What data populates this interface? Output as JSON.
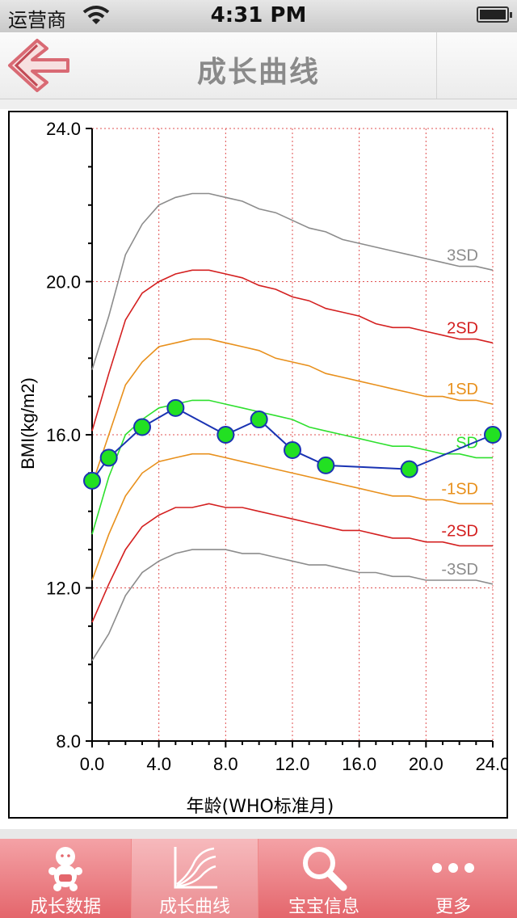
{
  "status_bar": {
    "carrier": "运营商",
    "time": "4:31 PM"
  },
  "nav": {
    "title": "成长曲线"
  },
  "tabs": [
    {
      "label": "成长数据",
      "icon": "baby-icon"
    },
    {
      "label": "成长曲线",
      "icon": "chart-icon"
    },
    {
      "label": "宝宝信息",
      "icon": "magnifier-icon"
    },
    {
      "label": "更多",
      "icon": "more-dots-icon"
    }
  ],
  "chart_data": {
    "type": "line",
    "xlabel": "年龄(WHO标准月)",
    "ylabel": "BMI(kg/m2)",
    "xlim": [
      0,
      24
    ],
    "ylim": [
      8,
      24
    ],
    "x_ticks": [
      "0.0",
      "4.0",
      "8.0",
      "12.0",
      "16.0",
      "20.0",
      "24.0"
    ],
    "y_ticks": [
      "8.0",
      "12.0",
      "16.0",
      "20.0",
      "24.0"
    ],
    "grid": true,
    "grid_color": "#e05050",
    "series": [
      {
        "name": "3SD",
        "color": "#8c8c8c",
        "x": [
          0,
          1,
          2,
          3,
          4,
          5,
          6,
          7,
          8,
          9,
          10,
          11,
          12,
          13,
          14,
          15,
          16,
          17,
          18,
          19,
          20,
          21,
          22,
          23,
          24
        ],
        "values": [
          17.7,
          19.1,
          20.7,
          21.5,
          22.0,
          22.2,
          22.3,
          22.3,
          22.2,
          22.1,
          21.9,
          21.8,
          21.6,
          21.4,
          21.3,
          21.1,
          21.0,
          20.9,
          20.8,
          20.7,
          20.6,
          20.5,
          20.4,
          20.4,
          20.3
        ]
      },
      {
        "name": "2SD",
        "color": "#d42020",
        "x": [
          0,
          1,
          2,
          3,
          4,
          5,
          6,
          7,
          8,
          9,
          10,
          11,
          12,
          13,
          14,
          15,
          16,
          17,
          18,
          19,
          20,
          21,
          22,
          23,
          24
        ],
        "values": [
          16.1,
          17.6,
          19.0,
          19.7,
          20.0,
          20.2,
          20.3,
          20.3,
          20.2,
          20.1,
          19.9,
          19.8,
          19.6,
          19.5,
          19.3,
          19.2,
          19.1,
          18.9,
          18.8,
          18.8,
          18.7,
          18.6,
          18.5,
          18.5,
          18.4
        ]
      },
      {
        "name": "1SD",
        "color": "#e8901c",
        "x": [
          0,
          1,
          2,
          3,
          4,
          5,
          6,
          7,
          8,
          9,
          10,
          11,
          12,
          13,
          14,
          15,
          16,
          17,
          18,
          19,
          20,
          21,
          22,
          23,
          24
        ],
        "values": [
          14.7,
          16.0,
          17.3,
          17.9,
          18.3,
          18.4,
          18.5,
          18.5,
          18.4,
          18.3,
          18.2,
          18.0,
          17.9,
          17.8,
          17.6,
          17.5,
          17.4,
          17.3,
          17.2,
          17.1,
          17.0,
          17.0,
          16.9,
          16.9,
          16.8
        ]
      },
      {
        "name": "SD",
        "color": "#2ee02e",
        "x": [
          0,
          1,
          2,
          3,
          4,
          5,
          6,
          7,
          8,
          9,
          10,
          11,
          12,
          13,
          14,
          15,
          16,
          17,
          18,
          19,
          20,
          21,
          22,
          23,
          24
        ],
        "values": [
          13.4,
          14.9,
          16.0,
          16.4,
          16.7,
          16.8,
          16.9,
          16.9,
          16.8,
          16.7,
          16.6,
          16.5,
          16.4,
          16.2,
          16.1,
          16.0,
          15.9,
          15.8,
          15.7,
          15.7,
          15.6,
          15.5,
          15.5,
          15.4,
          15.4
        ]
      },
      {
        "name": "-1SD",
        "color": "#e8901c",
        "x": [
          0,
          1,
          2,
          3,
          4,
          5,
          6,
          7,
          8,
          9,
          10,
          11,
          12,
          13,
          14,
          15,
          16,
          17,
          18,
          19,
          20,
          21,
          22,
          23,
          24
        ],
        "values": [
          12.2,
          13.4,
          14.4,
          15.0,
          15.3,
          15.4,
          15.5,
          15.5,
          15.4,
          15.3,
          15.2,
          15.1,
          15.0,
          14.9,
          14.8,
          14.7,
          14.6,
          14.5,
          14.4,
          14.4,
          14.3,
          14.3,
          14.2,
          14.2,
          14.2
        ]
      },
      {
        "name": "-2SD",
        "color": "#d42020",
        "x": [
          0,
          1,
          2,
          3,
          4,
          5,
          6,
          7,
          8,
          9,
          10,
          11,
          12,
          13,
          14,
          15,
          16,
          17,
          18,
          19,
          20,
          21,
          22,
          23,
          24
        ],
        "values": [
          11.1,
          12.1,
          13.0,
          13.6,
          13.9,
          14.1,
          14.1,
          14.2,
          14.1,
          14.1,
          14.0,
          13.9,
          13.8,
          13.7,
          13.6,
          13.5,
          13.5,
          13.4,
          13.3,
          13.3,
          13.2,
          13.2,
          13.1,
          13.1,
          13.1
        ]
      },
      {
        "name": "-3SD",
        "color": "#8c8c8c",
        "x": [
          0,
          1,
          2,
          3,
          4,
          5,
          6,
          7,
          8,
          9,
          10,
          11,
          12,
          13,
          14,
          15,
          16,
          17,
          18,
          19,
          20,
          21,
          22,
          23,
          24
        ],
        "values": [
          10.1,
          10.8,
          11.8,
          12.4,
          12.7,
          12.9,
          13.0,
          13.0,
          13.0,
          12.9,
          12.9,
          12.8,
          12.7,
          12.6,
          12.6,
          12.5,
          12.4,
          12.4,
          12.3,
          12.3,
          12.2,
          12.2,
          12.2,
          12.2,
          12.1
        ]
      },
      {
        "name": "",
        "color": "#1a33b3",
        "marker_color": "#22e022",
        "x": [
          0,
          1,
          3,
          5,
          8,
          10,
          12,
          14,
          19,
          24
        ],
        "values": [
          14.8,
          15.4,
          16.2,
          16.7,
          16.0,
          16.4,
          15.6,
          15.2,
          15.1,
          16.0
        ]
      }
    ]
  }
}
